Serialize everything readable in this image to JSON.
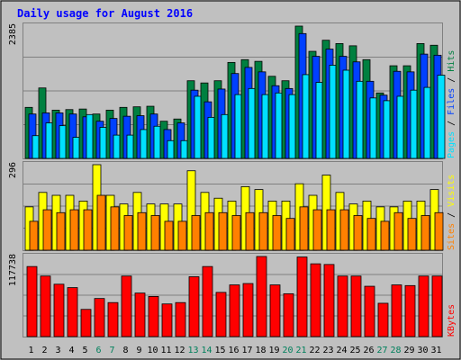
{
  "chart_data": {
    "type": "bar",
    "title": "Daily usage for August 2016",
    "days": [
      "1",
      "2",
      "3",
      "4",
      "5",
      "6",
      "7",
      "8",
      "9",
      "10",
      "11",
      "12",
      "13",
      "14",
      "15",
      "16",
      "17",
      "18",
      "19",
      "20",
      "21",
      "22",
      "23",
      "24",
      "25",
      "26",
      "27",
      "28",
      "29",
      "30",
      "31"
    ],
    "weekend_days": [
      "6",
      "7",
      "13",
      "14",
      "20",
      "21",
      "27",
      "28"
    ],
    "colors": {
      "hits": "#008040",
      "files": "#0040ff",
      "pages": "#00e0ff",
      "visits": "#ffff00",
      "sites": "#ff8000",
      "kbytes": "#ff0000",
      "weekday_label": "#000000",
      "weekend_label": "#00805c",
      "title": "#0000ff",
      "plot_bg": "#c0c0c0"
    },
    "panels": [
      {
        "name": "top",
        "max_label": "2385",
        "ymax": 2385,
        "ylim": [
          0,
          2385
        ],
        "legend": [
          {
            "text": "Pages",
            "color": "#00e0ff"
          },
          {
            "text": " / ",
            "color": "#000000"
          },
          {
            "text": "Files",
            "color": "#0040ff"
          },
          {
            "text": " / ",
            "color": "#000000"
          },
          {
            "text": "Hits",
            "color": "#008040"
          }
        ],
        "series": [
          {
            "name": "Hits",
            "color": "#008040",
            "values": [
              920,
              1270,
              870,
              880,
              890,
              800,
              870,
              920,
              930,
              940,
              670,
              710,
              1400,
              1360,
              1400,
              1730,
              1780,
              1750,
              1480,
              1400,
              2385,
              1930,
              2130,
              2070,
              2030,
              1780,
              1180,
              1670,
              1670,
              2070,
              2040
            ]
          },
          {
            "name": "Files",
            "color": "#0040ff",
            "values": [
              800,
              820,
              820,
              800,
              750,
              670,
              720,
              760,
              770,
              800,
              520,
              640,
              1230,
              1020,
              1250,
              1530,
              1640,
              1560,
              1310,
              1260,
              2250,
              1840,
              1970,
              1840,
              1740,
              1390,
              1140,
              1570,
              1560,
              1880,
              1860
            ]
          },
          {
            "name": "Pages",
            "color": "#00e0ff",
            "values": [
              410,
              640,
              590,
              380,
              790,
              560,
              420,
              420,
              520,
              580,
              320,
              320,
              1120,
              740,
              790,
              1150,
              1260,
              1150,
              1180,
              1150,
              1510,
              1370,
              1680,
              1590,
              1390,
              1090,
              1040,
              1120,
              1230,
              1280,
              1500
            ]
          }
        ]
      },
      {
        "name": "middle",
        "max_label": "296",
        "ymax": 296,
        "ylim": [
          0,
          296
        ],
        "legend": [
          {
            "text": "Sites",
            "color": "#ff8000"
          },
          {
            "text": " / ",
            "color": "#000000"
          },
          {
            "text": "Visits",
            "color": "#ffff00"
          }
        ],
        "series": [
          {
            "name": "Visits",
            "color": "#ffff00",
            "values": [
              150,
              200,
              190,
              190,
              170,
              296,
              190,
              160,
              200,
              160,
              160,
              160,
              275,
              200,
              180,
              170,
              220,
              210,
              170,
              170,
              230,
              190,
              260,
              200,
              160,
              170,
              150,
              150,
              170,
              170,
              210
            ]
          },
          {
            "name": "Sites",
            "color": "#ff8000",
            "values": [
              100,
              140,
              130,
              140,
              140,
              190,
              150,
              120,
              130,
              120,
              100,
              100,
              120,
              130,
              130,
              120,
              130,
              130,
              120,
              110,
              150,
              140,
              140,
              140,
              120,
              110,
              100,
              130,
              110,
              120,
              130
            ]
          }
        ]
      },
      {
        "name": "bottom",
        "max_label": "117738",
        "ymax": 117738,
        "ylim": [
          0,
          117738
        ],
        "legend": [
          {
            "text": "KBytes",
            "color": "#ff0000"
          }
        ],
        "series": [
          {
            "name": "KBytes",
            "color": "#ff0000",
            "values": [
              103000,
              89000,
              77000,
              72000,
              40000,
              56000,
              50000,
              89000,
              64000,
              59000,
              48000,
              50000,
              88000,
              103000,
              65000,
              76000,
              78000,
              117738,
              76000,
              63000,
              117000,
              107000,
              106000,
              89000,
              89000,
              74000,
              49000,
              76000,
              75000,
              89000,
              89000
            ]
          }
        ]
      }
    ]
  }
}
